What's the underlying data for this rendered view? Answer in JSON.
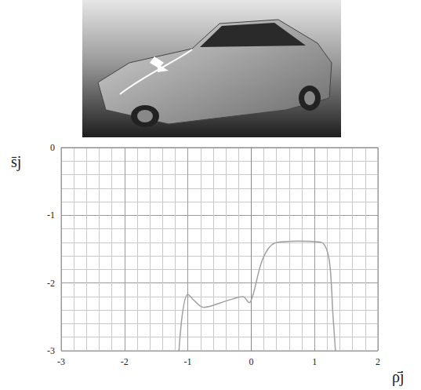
{
  "chart_data": {
    "type": "line",
    "x_label": "ρ̄j",
    "y_label": "s̄j",
    "x": [
      -1.14,
      -1.0,
      -0.75,
      -0.38,
      -0.13,
      -0.03,
      0.03,
      0.18,
      0.37,
      0.74,
      1.11,
      1.23,
      1.29,
      1.33
    ],
    "values": [
      -3.0,
      -2.17,
      -2.36,
      -2.26,
      -2.2,
      -2.29,
      -2.17,
      -1.65,
      -1.41,
      -1.38,
      -1.4,
      -1.65,
      -2.46,
      -3.0
    ],
    "color": "#a0a0a0",
    "xlim": [
      -3,
      2
    ],
    "xticks": [
      -3,
      -2,
      -1,
      0,
      1,
      2
    ],
    "ylim": [
      -3,
      0
    ],
    "yticks": [
      0,
      -1,
      -2,
      -3
    ],
    "grid": true
  }
}
